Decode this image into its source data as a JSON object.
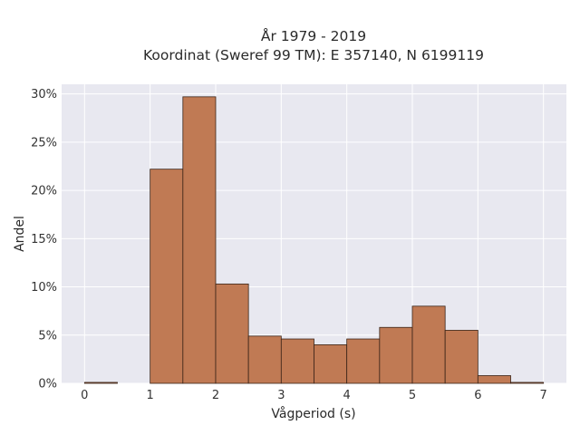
{
  "chart_data": {
    "type": "bar",
    "title_line1": "År 1979 - 2019",
    "title_line2": "Koordinat (Sweref 99 TM): E 357140, N 6199119",
    "xlabel": "Vågperiod (s)",
    "ylabel": "Andel",
    "xlim": [
      -0.35,
      7.35
    ],
    "ylim": [
      0,
      31
    ],
    "x_ticks": [
      0,
      1,
      2,
      3,
      4,
      5,
      6,
      7
    ],
    "y_ticks": [
      0,
      5,
      10,
      15,
      20,
      25,
      30
    ],
    "y_tick_labels": [
      "0%",
      "5%",
      "10%",
      "15%",
      "20%",
      "25%",
      "30%"
    ],
    "bin_width": 0.5,
    "bins": [
      {
        "start": 0.0,
        "value": 0.1
      },
      {
        "start": 0.5,
        "value": 0
      },
      {
        "start": 1.0,
        "value": 22.2
      },
      {
        "start": 1.5,
        "value": 29.7
      },
      {
        "start": 2.0,
        "value": 10.3
      },
      {
        "start": 2.5,
        "value": 4.9
      },
      {
        "start": 3.0,
        "value": 4.6
      },
      {
        "start": 3.5,
        "value": 4.0
      },
      {
        "start": 4.0,
        "value": 4.6
      },
      {
        "start": 4.5,
        "value": 5.8
      },
      {
        "start": 5.0,
        "value": 8.0
      },
      {
        "start": 5.5,
        "value": 5.5
      },
      {
        "start": 6.0,
        "value": 0.8
      },
      {
        "start": 6.5,
        "value": 0.1
      }
    ],
    "grid": true,
    "colors": {
      "bar_fill": "#c07a54",
      "bar_edge": "#3a2418",
      "plot_bg": "#e8e8f0",
      "grid": "#ffffff"
    }
  }
}
